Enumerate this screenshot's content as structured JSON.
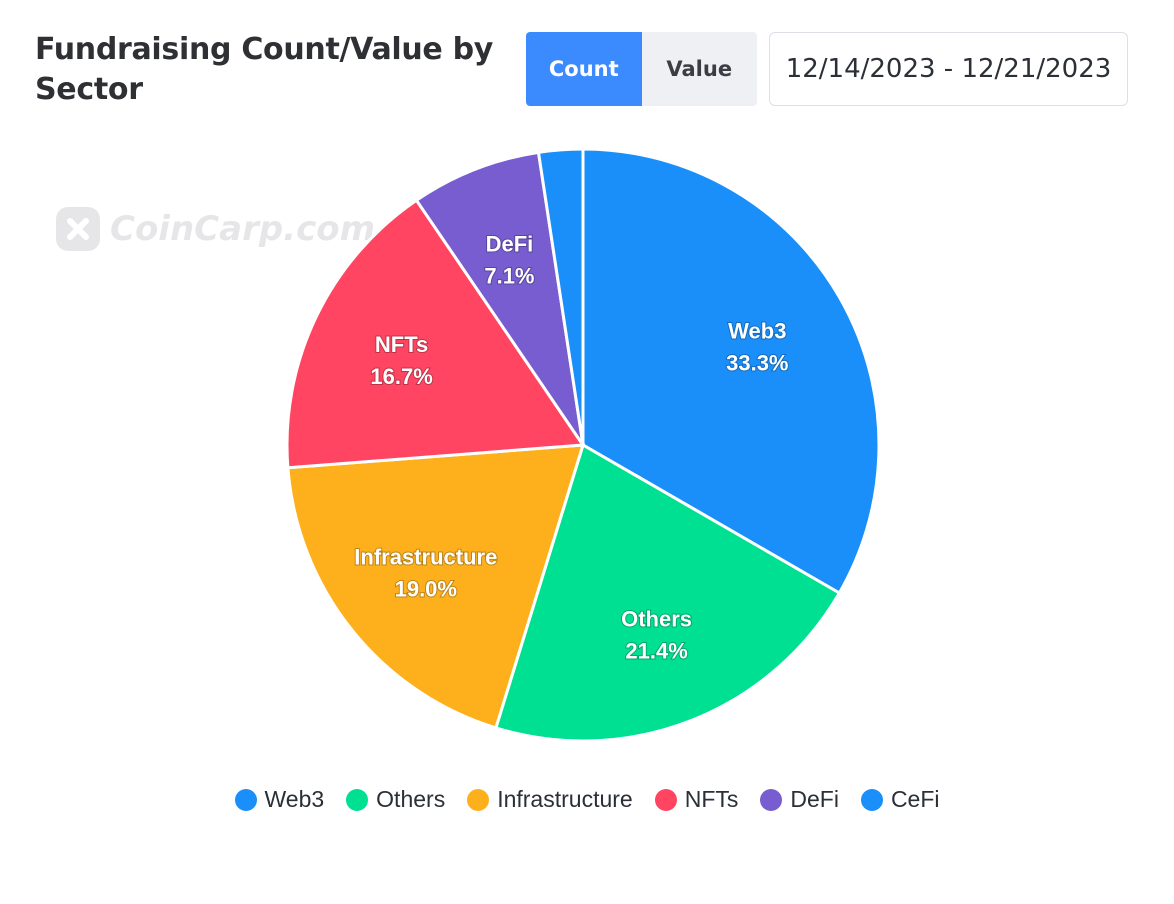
{
  "header": {
    "title": "Fundraising Count/Value by Sector",
    "toggle": {
      "count_label": "Count",
      "value_label": "Value",
      "selected": "Count"
    },
    "date_range": "12/14/2023 - 12/21/2023"
  },
  "watermark": "CoinCarp.com",
  "colors": {
    "accent": "#3b8bff"
  },
  "chart_data": {
    "type": "pie",
    "slices": [
      {
        "name": "Web3",
        "value": 33.3,
        "label": "33.3%",
        "color": "#1a8ffa"
      },
      {
        "name": "Others",
        "value": 21.4,
        "label": "21.4%",
        "color": "#00e092"
      },
      {
        "name": "Infrastructure",
        "value": 19.0,
        "label": "19.0%",
        "color": "#feb01c"
      },
      {
        "name": "NFTs",
        "value": 16.7,
        "label": "16.7%",
        "color": "#ff4561"
      },
      {
        "name": "DeFi",
        "value": 7.1,
        "label": "7.1%",
        "color": "#775dd0"
      },
      {
        "name": "CeFi",
        "value": 2.4,
        "label": "",
        "color": "#1a8ffa"
      }
    ],
    "legend_position": "bottom"
  }
}
